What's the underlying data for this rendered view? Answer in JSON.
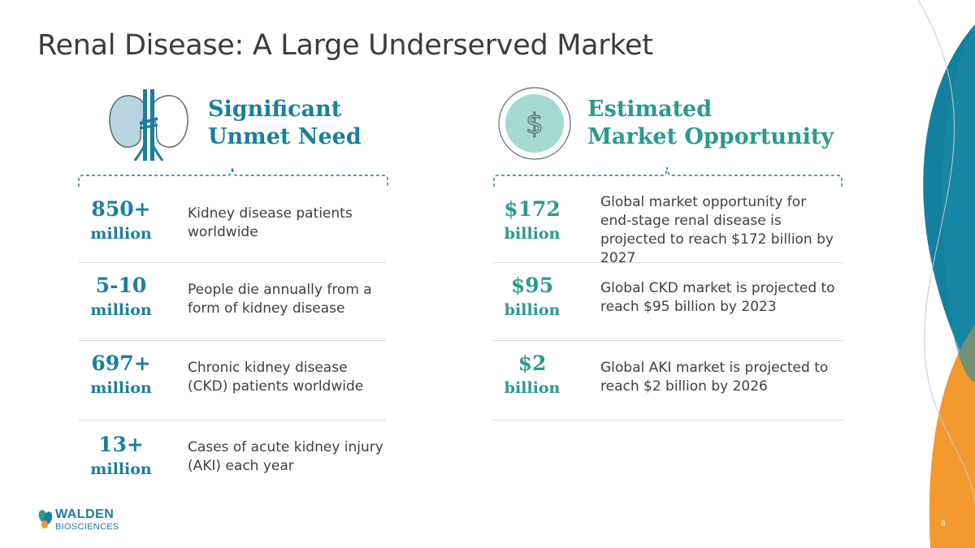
{
  "title": "Renal Disease: A Large Underserved Market",
  "left": {
    "heading_line1": "Significant",
    "heading_line2": "Unmet Need",
    "icon": "kidney-icon",
    "stats": [
      {
        "value": "850+",
        "unit": "million",
        "desc": "Kidney disease patients worldwide"
      },
      {
        "value": "5-10",
        "unit": "million",
        "desc": "People die annually from a form of kidney disease"
      },
      {
        "value": "697+",
        "unit": "million",
        "desc": "Chronic kidney disease (CKD) patients worldwide"
      },
      {
        "value": "13+",
        "unit": "million",
        "desc": "Cases of acute kidney injury (AKI) each year"
      }
    ]
  },
  "right": {
    "heading_line1": "Estimated",
    "heading_line2": "Market Opportunity",
    "icon": "dollar-icon",
    "stats": [
      {
        "value": "$172",
        "unit": "billion",
        "desc": "Global market opportunity for end-stage renal disease is projected to reach $172 billion by 2027"
      },
      {
        "value": "$95",
        "unit": "billion",
        "desc": "Global CKD market is projected to reach $95 billion by 2023"
      },
      {
        "value": "$2",
        "unit": "billion",
        "desc": "Global AKI market is projected to reach $2 billion by 2026"
      }
    ]
  },
  "footer": {
    "logo_name": "WALDEN",
    "logo_sub": "BIOSCIENCES",
    "page_number": "8"
  },
  "colors": {
    "teal_blue": "#1a7f9c",
    "teal_green": "#2a9a8e",
    "orange": "#f29a2e",
    "dark_teal": "#13809f"
  }
}
